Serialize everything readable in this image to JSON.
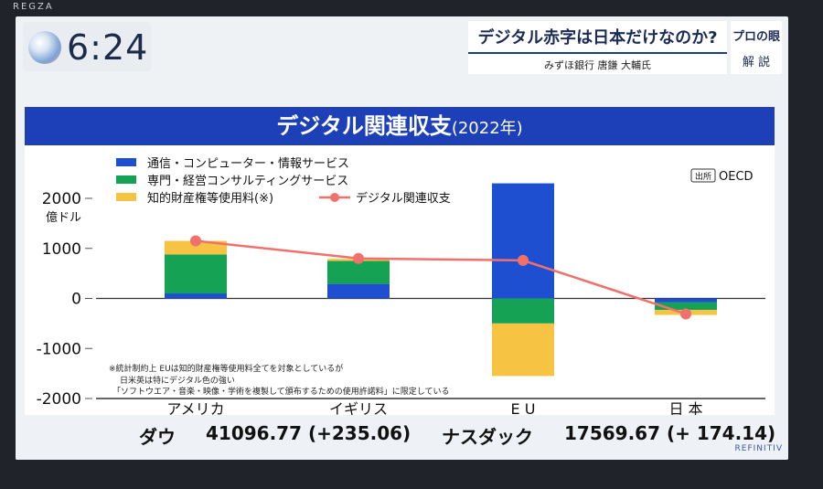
{
  "tv": {
    "brand": "REGZA"
  },
  "clock": {
    "time": "6:24"
  },
  "topic": {
    "title": "デジタル赤字は日本だけなのか?",
    "commentator": "みずほ銀行 唐鎌 大輔氏"
  },
  "badge": {
    "top": "プロの眼",
    "bottom": "解 説"
  },
  "chart_header": {
    "title": "デジタル関連収支",
    "year": "(2022年)"
  },
  "chart_data": {
    "type": "bar",
    "stacked": true,
    "title": "デジタル関連収支(2022年)",
    "source": "OECD",
    "source_label": "出所",
    "ylabel": "億ドル",
    "ylim": [
      -2000,
      2000
    ],
    "yticks": [
      "2000",
      "1000",
      "0",
      "-1000",
      "-2000"
    ],
    "ytick_values": [
      2000,
      1000,
      0,
      -1000,
      -2000
    ],
    "categories": [
      "アメリカ",
      "イギリス",
      "E U",
      "日 本"
    ],
    "series": [
      {
        "name": "通信・コンピューター・情報サービス",
        "color": "#1d4fd0",
        "values": [
          100,
          290,
          2300,
          -80
        ]
      },
      {
        "name": "専門・経営コンサルティングサービス",
        "color": "#16a254",
        "values": [
          780,
          460,
          -500,
          -150
        ]
      },
      {
        "name": "知的財産権等使用料(※)",
        "color": "#f6c342",
        "values": [
          270,
          40,
          -1050,
          -100
        ]
      }
    ],
    "line": {
      "name": "デジタル関連収支",
      "color": "#f0716b",
      "values": [
        1150,
        800,
        760,
        -310
      ]
    },
    "footnote": [
      "※統計制約上 EUは知的財産権等使用料全てを対象としているが",
      "日米英は特にデジタル色の強い",
      "「ソフトウエア・音楽・映像・学術を複製して頒布するための使用許諾料」に限定している"
    ]
  },
  "ticker": {
    "dow_label": "ダウ",
    "dow_value": "41096.77 (+235.06)",
    "nasdaq_label": "ナスダック",
    "nasdaq_value": "17569.67 (+ 174.14)"
  },
  "provider": "REFINITIV"
}
